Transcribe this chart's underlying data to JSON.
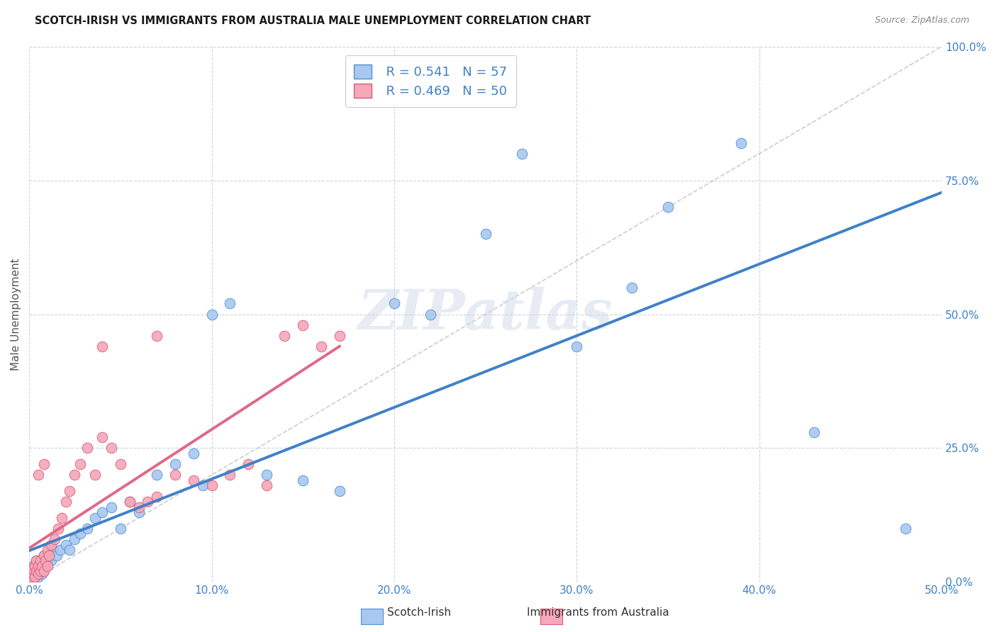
{
  "title": "SCOTCH-IRISH VS IMMIGRANTS FROM AUSTRALIA MALE UNEMPLOYMENT CORRELATION CHART",
  "source": "Source: ZipAtlas.com",
  "xlim": [
    0.0,
    0.5
  ],
  "ylim": [
    0.0,
    1.0
  ],
  "xticks": [
    0.0,
    0.1,
    0.2,
    0.3,
    0.4,
    0.5
  ],
  "yticks": [
    0.0,
    0.25,
    0.5,
    0.75,
    1.0
  ],
  "legend_label1": "Scotch-Irish",
  "legend_label2": "Immigrants from Australia",
  "legend_R1": "R = 0.541",
  "legend_N1": "N = 57",
  "legend_R2": "R = 0.469",
  "legend_N2": "N = 50",
  "color_blue": "#A8C8F0",
  "color_pink": "#F4A8B8",
  "color_blue_edge": "#5090D0",
  "color_pink_edge": "#E05878",
  "color_blue_line": "#4080C8",
  "color_pink_line": "#E06888",
  "color_diag": "#C0C0C0",
  "background": "#FFFFFF",
  "watermark": "ZIPatlas",
  "ylabel": "Male Unemployment",
  "si_x": [
    0.001,
    0.001,
    0.002,
    0.002,
    0.002,
    0.003,
    0.003,
    0.003,
    0.004,
    0.004,
    0.004,
    0.005,
    0.005,
    0.005,
    0.006,
    0.006,
    0.007,
    0.007,
    0.008,
    0.008,
    0.009,
    0.01,
    0.011,
    0.012,
    0.013,
    0.015,
    0.017,
    0.02,
    0.022,
    0.025,
    0.028,
    0.032,
    0.036,
    0.04,
    0.045,
    0.05,
    0.055,
    0.06,
    0.07,
    0.08,
    0.09,
    0.095,
    0.1,
    0.11,
    0.13,
    0.15,
    0.17,
    0.2,
    0.22,
    0.25,
    0.27,
    0.3,
    0.33,
    0.35,
    0.39,
    0.43,
    0.48
  ],
  "si_y": [
    0.01,
    0.02,
    0.015,
    0.025,
    0.03,
    0.01,
    0.02,
    0.03,
    0.015,
    0.025,
    0.04,
    0.01,
    0.02,
    0.03,
    0.02,
    0.04,
    0.015,
    0.03,
    0.025,
    0.05,
    0.03,
    0.04,
    0.05,
    0.04,
    0.06,
    0.05,
    0.06,
    0.07,
    0.06,
    0.08,
    0.09,
    0.1,
    0.12,
    0.13,
    0.14,
    0.1,
    0.15,
    0.13,
    0.2,
    0.22,
    0.24,
    0.18,
    0.5,
    0.52,
    0.2,
    0.19,
    0.17,
    0.52,
    0.5,
    0.65,
    0.8,
    0.44,
    0.55,
    0.7,
    0.82,
    0.28,
    0.1
  ],
  "au_x": [
    0.001,
    0.001,
    0.002,
    0.002,
    0.003,
    0.003,
    0.004,
    0.004,
    0.005,
    0.005,
    0.006,
    0.006,
    0.007,
    0.008,
    0.008,
    0.009,
    0.01,
    0.01,
    0.011,
    0.012,
    0.014,
    0.016,
    0.018,
    0.02,
    0.022,
    0.025,
    0.028,
    0.032,
    0.036,
    0.04,
    0.045,
    0.05,
    0.055,
    0.06,
    0.065,
    0.07,
    0.08,
    0.09,
    0.1,
    0.11,
    0.12,
    0.13,
    0.14,
    0.15,
    0.16,
    0.17,
    0.04,
    0.07,
    0.005,
    0.008
  ],
  "au_y": [
    0.01,
    0.02,
    0.015,
    0.025,
    0.01,
    0.03,
    0.02,
    0.04,
    0.015,
    0.03,
    0.02,
    0.04,
    0.03,
    0.02,
    0.05,
    0.04,
    0.03,
    0.06,
    0.05,
    0.07,
    0.08,
    0.1,
    0.12,
    0.15,
    0.17,
    0.2,
    0.22,
    0.25,
    0.2,
    0.27,
    0.25,
    0.22,
    0.15,
    0.14,
    0.15,
    0.16,
    0.2,
    0.19,
    0.18,
    0.2,
    0.22,
    0.18,
    0.46,
    0.48,
    0.44,
    0.46,
    0.44,
    0.46,
    0.2,
    0.22
  ]
}
